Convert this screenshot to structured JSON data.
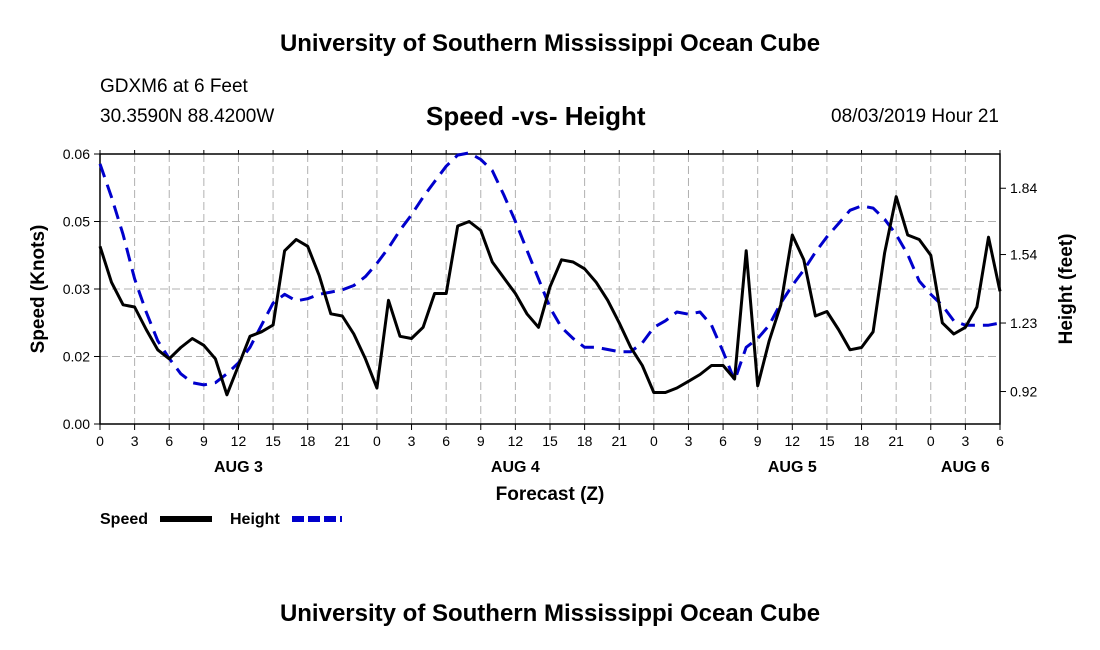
{
  "header": {
    "title": "University of Southern Mississippi Ocean Cube",
    "station": "GDXM6 at 6 Feet",
    "coords": "30.3590N 88.4200W",
    "chart_title": "Speed -vs- Height",
    "timestamp": "08/03/2019 Hour 21"
  },
  "footer": {
    "title": "University of Southern Mississippi Ocean Cube"
  },
  "colors": {
    "speed": "#000000",
    "height": "#0000cc",
    "grid": "#b0b0b0"
  },
  "chart_data": {
    "type": "line",
    "title": "Speed -vs- Height",
    "xlabel": "Forecast (Z)",
    "ylabel": "Speed (Knots)",
    "y2label": "Height (feet)",
    "x_hours_range": [
      0,
      78
    ],
    "ylim": [
      0,
      0.06
    ],
    "y2lim": [
      0.773,
      1.995
    ],
    "yticks": [
      "0.00",
      "0.02",
      "0.03",
      "0.05",
      "0.06"
    ],
    "yticks_values": [
      0,
      0.015,
      0.03,
      0.045,
      0.06
    ],
    "y2ticks": [
      "0.92",
      "1.23",
      "1.54",
      "1.84"
    ],
    "y2ticks_values": [
      0.92,
      1.23,
      1.54,
      1.84
    ],
    "xtick_labels": [
      "0",
      "3",
      "6",
      "9",
      "12",
      "15",
      "18",
      "21",
      "0",
      "3",
      "6",
      "9",
      "12",
      "15",
      "18",
      "21",
      "0",
      "3",
      "6",
      "9",
      "12",
      "15",
      "18",
      "21",
      "0",
      "3",
      "6"
    ],
    "day_labels": [
      {
        "label": "AUG 3",
        "hour": 12
      },
      {
        "label": "AUG 4",
        "hour": 36
      },
      {
        "label": "AUG 5",
        "hour": 60
      },
      {
        "label": "AUG 6",
        "hour": 75
      }
    ],
    "legend": [
      {
        "name": "Speed",
        "color": "#000000",
        "style": "solid"
      },
      {
        "name": "Height",
        "color": "#0000cc",
        "style": "dashed"
      }
    ],
    "series": [
      {
        "name": "Speed",
        "axis": "left",
        "points": [
          [
            0,
            0.0395
          ],
          [
            1,
            0.0315
          ],
          [
            2,
            0.0265
          ],
          [
            3,
            0.026
          ],
          [
            4,
            0.021
          ],
          [
            5,
            0.0165
          ],
          [
            6,
            0.0145
          ],
          [
            7,
            0.017
          ],
          [
            8,
            0.019
          ],
          [
            9,
            0.0175
          ],
          [
            10,
            0.0145
          ],
          [
            11,
            0.0065
          ],
          [
            12,
            0.013
          ],
          [
            13,
            0.0195
          ],
          [
            14,
            0.0205
          ],
          [
            15,
            0.022
          ],
          [
            16,
            0.0385
          ],
          [
            17,
            0.041
          ],
          [
            18,
            0.0395
          ],
          [
            19,
            0.033
          ],
          [
            20,
            0.0245
          ],
          [
            21,
            0.024
          ],
          [
            22,
            0.02
          ],
          [
            23,
            0.0145
          ],
          [
            24,
            0.008
          ],
          [
            25,
            0.0275
          ],
          [
            26,
            0.0195
          ],
          [
            27,
            0.019
          ],
          [
            28,
            0.0215
          ],
          [
            29,
            0.029
          ],
          [
            30,
            0.029
          ],
          [
            31,
            0.044
          ],
          [
            32,
            0.045
          ],
          [
            33,
            0.043
          ],
          [
            34,
            0.036
          ],
          [
            35,
            0.0325
          ],
          [
            36,
            0.029
          ],
          [
            37,
            0.0245
          ],
          [
            38,
            0.0215
          ],
          [
            39,
            0.0305
          ],
          [
            40,
            0.0365
          ],
          [
            41,
            0.036
          ],
          [
            42,
            0.0345
          ],
          [
            43,
            0.0315
          ],
          [
            44,
            0.0275
          ],
          [
            45,
            0.0225
          ],
          [
            46,
            0.017
          ],
          [
            47,
            0.013
          ],
          [
            48,
            0.007
          ],
          [
            49,
            0.007
          ],
          [
            50,
            0.008
          ],
          [
            51,
            0.0095
          ],
          [
            52,
            0.011
          ],
          [
            53,
            0.013
          ],
          [
            54,
            0.013
          ],
          [
            55,
            0.01
          ],
          [
            56,
            0.0385
          ],
          [
            57,
            0.0085
          ],
          [
            58,
            0.0185
          ],
          [
            59,
            0.0265
          ],
          [
            60,
            0.042
          ],
          [
            61,
            0.0365
          ],
          [
            62,
            0.024
          ],
          [
            63,
            0.025
          ],
          [
            64,
            0.021
          ],
          [
            65,
            0.0165
          ],
          [
            66,
            0.017
          ],
          [
            67,
            0.0205
          ],
          [
            68,
            0.038
          ],
          [
            69,
            0.0505
          ],
          [
            70,
            0.042
          ],
          [
            71,
            0.041
          ],
          [
            72,
            0.0375
          ],
          [
            73,
            0.0225
          ],
          [
            74,
            0.02
          ],
          [
            75,
            0.0215
          ],
          [
            76,
            0.026
          ],
          [
            77,
            0.0415
          ],
          [
            78,
            0.0295
          ]
        ]
      },
      {
        "name": "Height",
        "axis": "right",
        "points": [
          [
            0,
            1.95
          ],
          [
            1,
            1.8
          ],
          [
            2,
            1.63
          ],
          [
            3,
            1.43
          ],
          [
            4,
            1.28
          ],
          [
            5,
            1.15
          ],
          [
            6,
            1.07
          ],
          [
            7,
            1.0
          ],
          [
            8,
            0.96
          ],
          [
            9,
            0.95
          ],
          [
            10,
            0.96
          ],
          [
            11,
            1.0
          ],
          [
            12,
            1.05
          ],
          [
            13,
            1.12
          ],
          [
            14,
            1.22
          ],
          [
            15,
            1.32
          ],
          [
            16,
            1.36
          ],
          [
            17,
            1.33
          ],
          [
            18,
            1.34
          ],
          [
            19,
            1.36
          ],
          [
            20,
            1.37
          ],
          [
            21,
            1.38
          ],
          [
            22,
            1.4
          ],
          [
            23,
            1.44
          ],
          [
            24,
            1.5
          ],
          [
            25,
            1.57
          ],
          [
            26,
            1.65
          ],
          [
            27,
            1.72
          ],
          [
            28,
            1.8
          ],
          [
            29,
            1.87
          ],
          [
            30,
            1.94
          ],
          [
            31,
            1.99
          ],
          [
            32,
            2.0
          ],
          [
            33,
            1.97
          ],
          [
            34,
            1.92
          ],
          [
            35,
            1.81
          ],
          [
            36,
            1.69
          ],
          [
            37,
            1.56
          ],
          [
            38,
            1.43
          ],
          [
            39,
            1.3
          ],
          [
            40,
            1.21
          ],
          [
            41,
            1.16
          ],
          [
            42,
            1.12
          ],
          [
            43,
            1.12
          ],
          [
            44,
            1.11
          ],
          [
            45,
            1.1
          ],
          [
            46,
            1.1
          ],
          [
            47,
            1.14
          ],
          [
            48,
            1.21
          ],
          [
            49,
            1.24
          ],
          [
            50,
            1.28
          ],
          [
            51,
            1.27
          ],
          [
            52,
            1.28
          ],
          [
            53,
            1.22
          ],
          [
            54,
            1.1
          ],
          [
            55,
            0.97
          ],
          [
            56,
            1.12
          ],
          [
            57,
            1.16
          ],
          [
            58,
            1.22
          ],
          [
            59,
            1.32
          ],
          [
            60,
            1.4
          ],
          [
            61,
            1.47
          ],
          [
            62,
            1.55
          ],
          [
            63,
            1.62
          ],
          [
            64,
            1.68
          ],
          [
            65,
            1.74
          ],
          [
            66,
            1.76
          ],
          [
            67,
            1.75
          ],
          [
            68,
            1.7
          ],
          [
            69,
            1.63
          ],
          [
            70,
            1.54
          ],
          [
            71,
            1.42
          ],
          [
            72,
            1.36
          ],
          [
            73,
            1.31
          ],
          [
            74,
            1.24
          ],
          [
            75,
            1.22
          ],
          [
            76,
            1.22
          ],
          [
            77,
            1.22
          ],
          [
            78,
            1.23
          ]
        ]
      }
    ]
  }
}
